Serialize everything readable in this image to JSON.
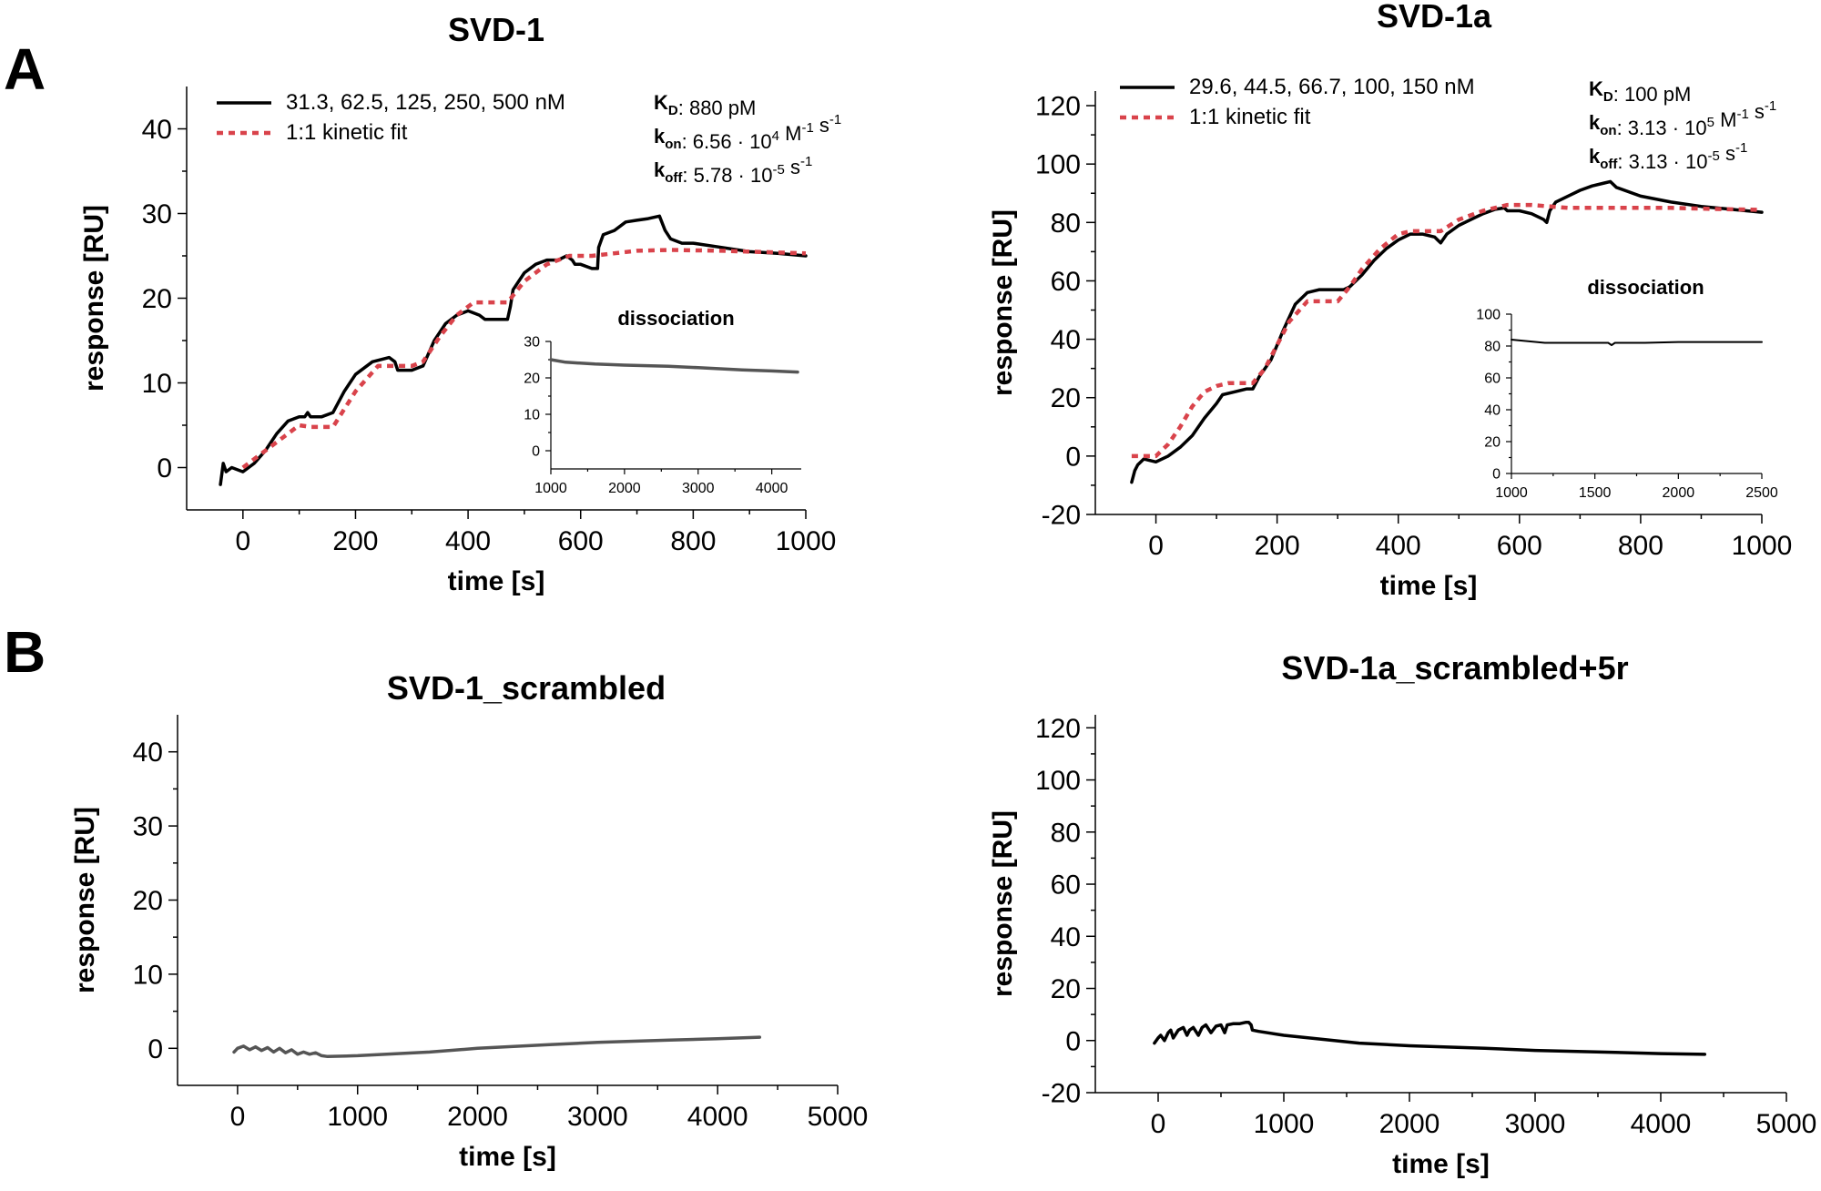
{
  "panel_labels": [
    "A",
    "B"
  ],
  "chart_data": [
    {
      "id": "svd1",
      "type": "line",
      "title": "SVD-1",
      "xlabel": "time [s]",
      "ylabel": "response [RU]",
      "xlim": [
        -100,
        1000
      ],
      "ylim": [
        -5,
        45
      ],
      "xticks": [
        0,
        200,
        400,
        600,
        800,
        1000
      ],
      "yticks": [
        0,
        10,
        20,
        30,
        40
      ],
      "legend": [
        {
          "label": "31.3, 62.5, 125, 250, 500 nM",
          "style": "solid",
          "color": "#000000"
        },
        {
          "label": "1:1 kinetic fit",
          "style": "dotted",
          "color": "#d9434b"
        }
      ],
      "annotation": {
        "kd_sym": "K",
        "kd_sub": "D",
        "kd_val": ": 880 pM",
        "kon_sym": "k",
        "kon_sub": "on",
        "kon_val": ": 6.56 · 10",
        "kon_exp": "4",
        "kon_unit": " M",
        "kon_exp2": "-1",
        "kon_unit2": " s",
        "kon_exp3": "-1",
        "koff_sym": "k",
        "koff_sub": "off",
        "koff_val": ": 5.78 · 10",
        "koff_exp": "-5",
        "koff_unit": " s",
        "koff_exp2": "-1"
      },
      "series": [
        {
          "name": "data",
          "color": "#000000",
          "style": "solid",
          "x": [
            -40,
            -35,
            -30,
            -20,
            0,
            20,
            40,
            60,
            80,
            100,
            110,
            115,
            120,
            140,
            160,
            180,
            200,
            230,
            260,
            270,
            275,
            280,
            300,
            320,
            340,
            360,
            380,
            400,
            420,
            430,
            440,
            460,
            470,
            475,
            480,
            500,
            520,
            540,
            560,
            575,
            585,
            590,
            600,
            620,
            630,
            632,
            640,
            660,
            680,
            700,
            720,
            740,
            750,
            760,
            780,
            800,
            850,
            900,
            950,
            1000
          ],
          "y": [
            -2,
            0.5,
            -0.5,
            0,
            -0.5,
            0.5,
            2,
            4,
            5.5,
            6,
            6,
            6.5,
            6,
            6,
            6.5,
            9,
            11,
            12.5,
            13,
            12.5,
            11.5,
            11.5,
            11.5,
            12,
            15,
            17,
            18,
            18.5,
            18,
            17.5,
            17.5,
            17.5,
            17.5,
            19,
            21,
            23,
            24,
            24.5,
            24.5,
            25,
            24.5,
            24,
            24,
            23.5,
            23.5,
            26,
            27.5,
            28,
            29,
            29.2,
            29.4,
            29.7,
            28,
            27,
            26.5,
            26.5,
            26,
            25.5,
            25.3,
            25
          ]
        },
        {
          "name": "fit",
          "color": "#d9434b",
          "style": "dotted",
          "x": [
            0,
            40,
            80,
            100,
            120,
            160,
            200,
            240,
            280,
            300,
            320,
            350,
            380,
            410,
            440,
            470,
            500,
            540,
            580,
            620,
            660,
            700,
            760,
            850,
            950,
            1000
          ],
          "y": [
            0,
            2,
            4,
            5,
            4.8,
            4.8,
            9,
            12,
            12,
            12,
            12.5,
            15.5,
            18,
            19.5,
            19.5,
            19.5,
            22,
            24,
            25,
            25,
            25.3,
            25.6,
            25.7,
            25.6,
            25.4,
            25.3
          ]
        }
      ],
      "inset": {
        "title": "dissociation",
        "xlim": [
          1000,
          4400
        ],
        "ylim": [
          -5,
          30
        ],
        "xticks": [
          1000,
          2000,
          3000,
          4000
        ],
        "yticks": [
          0,
          10,
          20,
          30
        ],
        "series": [
          {
            "name": "dissociation",
            "color": "#555555",
            "x": [
              1000,
              1200,
              1600,
              2000,
              2600,
              3000,
              3600,
              4000,
              4350
            ],
            "y": [
              25,
              24.3,
              23.8,
              23.5,
              23.2,
              22.8,
              22.2,
              21.9,
              21.6
            ]
          }
        ]
      }
    },
    {
      "id": "svd1a",
      "type": "line",
      "title": "SVD-1a",
      "xlabel": "time [s]",
      "ylabel": "response [RU]",
      "xlim": [
        -100,
        1000
      ],
      "ylim": [
        -20,
        125
      ],
      "xticks": [
        0,
        200,
        400,
        600,
        800,
        1000
      ],
      "yticks": [
        -20,
        0,
        20,
        40,
        60,
        80,
        100,
        120
      ],
      "legend": [
        {
          "label": "29.6, 44.5, 66.7, 100, 150 nM",
          "style": "solid",
          "color": "#000000"
        },
        {
          "label": "1:1 kinetic fit",
          "style": "dotted",
          "color": "#d9434b"
        }
      ],
      "annotation": {
        "kd_sym": "K",
        "kd_sub": "D",
        "kd_val": ": 100 pM",
        "kon_sym": "k",
        "kon_sub": "on",
        "kon_val": ": 3.13 · 10",
        "kon_exp": "5",
        "kon_unit": " M",
        "kon_exp2": "-1",
        "kon_unit2": " s",
        "kon_exp3": "-1",
        "koff_sym": "k",
        "koff_sub": "off",
        "koff_val": ": 3.13 · 10",
        "koff_exp": "-5",
        "koff_unit": " s",
        "koff_exp2": "-1"
      },
      "series": [
        {
          "name": "data",
          "color": "#000000",
          "style": "solid",
          "x": [
            -40,
            -35,
            -30,
            -20,
            0,
            20,
            40,
            60,
            80,
            100,
            110,
            130,
            150,
            160,
            170,
            190,
            210,
            230,
            250,
            270,
            300,
            310,
            320,
            340,
            360,
            380,
            400,
            420,
            440,
            460,
            465,
            470,
            480,
            500,
            520,
            540,
            560,
            575,
            580,
            600,
            620,
            640,
            645,
            650,
            660,
            680,
            700,
            720,
            740,
            750,
            760,
            800,
            850,
            900,
            950,
            1000
          ],
          "y": [
            -9,
            -5,
            -3,
            -1,
            -2,
            0,
            3,
            7,
            13,
            18,
            21,
            22,
            23,
            23,
            27,
            33,
            43,
            52,
            56,
            57,
            57,
            57,
            58,
            62,
            67,
            71,
            74,
            76,
            76,
            75,
            74,
            73,
            76,
            79,
            81,
            83,
            84.5,
            85,
            84,
            84,
            83,
            81,
            80,
            84,
            87,
            89,
            91,
            92.5,
            93.5,
            94,
            92,
            89,
            87,
            85.5,
            84.5,
            83.5
          ]
        },
        {
          "name": "fit",
          "color": "#d9434b",
          "style": "dotted",
          "x": [
            -40,
            0,
            20,
            40,
            60,
            80,
            100,
            120,
            160,
            180,
            200,
            220,
            250,
            280,
            300,
            320,
            340,
            370,
            400,
            420,
            440,
            470,
            500,
            540,
            580,
            620,
            680,
            760,
            850,
            950,
            1000
          ],
          "y": [
            0,
            0,
            4,
            10,
            17,
            22,
            24,
            25,
            25,
            30,
            38,
            46,
            53,
            53,
            53,
            58,
            64,
            71,
            76,
            77,
            77,
            77,
            81,
            84,
            86,
            86,
            85,
            85,
            85,
            84.5,
            84.3
          ]
        }
      ],
      "inset": {
        "title": "dissociation",
        "xlim": [
          1000,
          2500
        ],
        "ylim": [
          0,
          100
        ],
        "xticks": [
          1000,
          1500,
          2000,
          2500
        ],
        "yticks": [
          0,
          20,
          40,
          60,
          80,
          100
        ],
        "series": [
          {
            "name": "dissociation",
            "color": "#000000",
            "x": [
              1000,
              1100,
              1200,
              1400,
              1580,
              1600,
              1620,
              1800,
              2000,
              2200,
              2500
            ],
            "y": [
              84,
              83,
              82,
              82,
              82,
              80.5,
              82,
              82,
              82.5,
              82.5,
              82.5
            ]
          }
        ]
      }
    },
    {
      "id": "svd1_scr",
      "type": "line",
      "title": "SVD-1_scrambled",
      "xlabel": "time [s]",
      "ylabel": "response [RU]",
      "xlim": [
        -500,
        5000
      ],
      "ylim": [
        -5,
        45
      ],
      "xticks": [
        0,
        1000,
        2000,
        3000,
        4000,
        5000
      ],
      "yticks": [
        0,
        10,
        20,
        30,
        40
      ],
      "series": [
        {
          "name": "data",
          "color": "#555555",
          "style": "solid",
          "x": [
            -30,
            0,
            50,
            100,
            150,
            200,
            250,
            300,
            350,
            400,
            450,
            500,
            550,
            600,
            650,
            700,
            750,
            1000,
            1600,
            2000,
            2600,
            3000,
            3600,
            4000,
            4350
          ],
          "y": [
            -0.5,
            0,
            0.3,
            -0.2,
            0.2,
            -0.3,
            0.1,
            -0.5,
            0,
            -0.6,
            -0.2,
            -0.8,
            -0.5,
            -0.8,
            -0.6,
            -1,
            -1.1,
            -1,
            -0.5,
            0,
            0.5,
            0.8,
            1.1,
            1.3,
            1.5
          ]
        }
      ]
    },
    {
      "id": "svd1a_scr",
      "type": "line",
      "title": "SVD-1a_scrambled+5r",
      "xlabel": "time [s]",
      "ylabel": "response [RU]",
      "xlim": [
        -500,
        5000
      ],
      "ylim": [
        -20,
        125
      ],
      "xticks": [
        0,
        1000,
        2000,
        3000,
        4000,
        5000
      ],
      "yticks": [
        -20,
        0,
        20,
        40,
        60,
        80,
        100,
        120
      ],
      "series": [
        {
          "name": "data",
          "color": "#000000",
          "style": "solid",
          "x": [
            -30,
            0,
            20,
            50,
            80,
            100,
            120,
            160,
            200,
            230,
            250,
            280,
            320,
            350,
            380,
            420,
            460,
            500,
            530,
            550,
            600,
            650,
            700,
            720,
            740,
            750,
            800,
            1000,
            1600,
            2000,
            2600,
            3000,
            3600,
            4000,
            4350
          ],
          "y": [
            -1,
            1,
            2,
            0,
            3,
            4,
            1,
            4,
            5,
            2,
            4,
            5,
            2,
            5,
            6,
            3,
            5.5,
            6,
            3,
            6,
            6.5,
            6.5,
            7,
            7,
            6,
            4,
            3.5,
            2,
            -1,
            -2,
            -3,
            -3.8,
            -4.5,
            -5,
            -5.3
          ]
        }
      ]
    }
  ]
}
